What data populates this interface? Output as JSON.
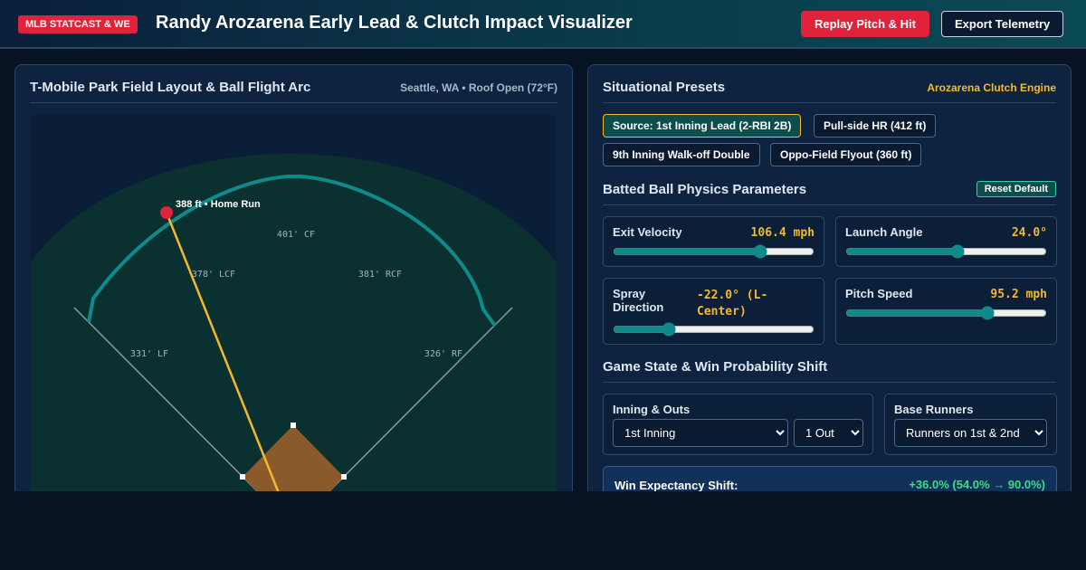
{
  "header": {
    "badge": "MLB STATCAST & WE",
    "title": "Randy Arozarena Early Lead & Clutch Impact Visualizer",
    "buttons": [
      "Replay Pitch & Hit",
      "Export Telemetry"
    ]
  },
  "field": {
    "title": "T-Mobile Park Field Layout & Ball Flight Arc",
    "meta": "Seattle, WA • Roof Open (72°F)",
    "hit_label": "388 ft • Home Run",
    "distance_labels": [
      "401' CF",
      "378' LCF",
      "381' RCF",
      "331' LF",
      "326' RF"
    ]
  },
  "presets": {
    "title": "Situational Presets",
    "engine": "Arozarena Clutch Engine",
    "chips": [
      "Source: 1st Inning Lead (2-RBI 2B)",
      "Pull-side HR (412 ft)",
      "9th Inning Walk-off Double",
      "Oppo-Field Flyout (360 ft)"
    ]
  },
  "physics": {
    "title": "Batted Ball Physics Parameters",
    "reset": "Reset Default",
    "sliders": [
      {
        "label": "Exit Velocity",
        "value": "106.4 mph"
      },
      {
        "label": "Launch Angle",
        "value": "24.0°"
      },
      {
        "label": "Spray Direction",
        "value": "-22.0° (L-Center)"
      },
      {
        "label": "Pitch Speed",
        "value": "95.2 mph"
      }
    ]
  },
  "game_state": {
    "title": "Game State & Win Probability Shift",
    "inning_label": "Inning & Outs",
    "inning": "1st Inning",
    "outs": "1 Out",
    "runners_label": "Base Runners",
    "runners": "Runners on 1st & 2nd",
    "shift_label": "Win Expectancy Shift:",
    "shift_value": "+36.0% (54.0% → 90.0%)"
  }
}
